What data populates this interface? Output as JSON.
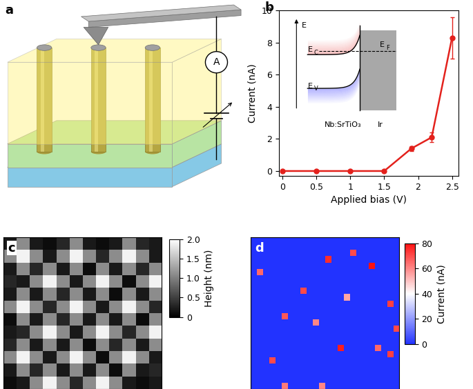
{
  "chart_data": [
    {
      "type": "diagram",
      "title": "a",
      "annotations": [
        "A"
      ]
    },
    {
      "type": "line",
      "title": "b",
      "x": [
        0,
        0.5,
        1,
        1.5,
        1.9,
        2.2,
        2.5
      ],
      "values": [
        0,
        0,
        0,
        0,
        1.4,
        2.1,
        8.3
      ],
      "errors": [
        0,
        0,
        0,
        0,
        0.15,
        0.3,
        1.3
      ],
      "x_label": "Applied bias (V)",
      "y_label": "Current (nA)",
      "xlim": [
        -0.05,
        2.6
      ],
      "xticks": [
        0,
        0.5,
        1,
        1.5,
        2,
        2.5
      ],
      "ylim": [
        -0.3,
        10
      ],
      "yticks": [
        0,
        2,
        4,
        6,
        8,
        10
      ],
      "color": "#e3211c",
      "marker": "o",
      "line_style": "solid",
      "grid": false,
      "inset": {
        "type": "diagram",
        "annotations": [
          {
            "text": "E"
          },
          {
            "text": "E",
            "subscript": "C"
          },
          {
            "text": "E",
            "subscript": "F"
          },
          {
            "text": "E",
            "subscript": "V"
          },
          {
            "text": "Nb:SrTiO₃"
          },
          {
            "text": "Ir"
          }
        ]
      }
    },
    {
      "type": "heatmap",
      "title": "c",
      "tick_labels": false,
      "cells": [
        [
          0.2,
          1.1,
          0.2,
          0.1,
          0.3,
          1.1,
          0.2,
          0.1,
          0.2,
          1.1,
          0.3,
          0.2
        ],
        [
          1.1,
          1.9,
          1.1,
          0.2,
          1.1,
          1.9,
          1.1,
          0.3,
          1.1,
          1.9,
          1.1,
          0.2
        ],
        [
          0.2,
          1.1,
          0.3,
          1.1,
          0.2,
          1.1,
          0.1,
          1.1,
          0.2,
          1.1,
          0.3,
          1.1
        ],
        [
          0.3,
          0.2,
          1.1,
          1.9,
          1.1,
          0.2,
          1.1,
          1.9,
          1.1,
          0.1,
          1.1,
          1.9
        ],
        [
          0.2,
          1.1,
          0.2,
          1.1,
          0.3,
          1.1,
          0.2,
          1.1,
          0.1,
          1.1,
          0.2,
          1.1
        ],
        [
          1.1,
          1.9,
          1.1,
          0.3,
          1.1,
          1.9,
          1.1,
          0.2,
          1.1,
          1.9,
          1.1,
          0.3
        ],
        [
          0.1,
          1.1,
          0.2,
          1.1,
          0.3,
          1.1,
          0.2,
          1.1,
          0.2,
          1.1,
          0.1,
          1.1
        ],
        [
          0.2,
          0.3,
          1.1,
          1.9,
          1.1,
          0.2,
          1.1,
          1.9,
          1.1,
          0.3,
          1.1,
          1.9
        ],
        [
          0.3,
          1.1,
          0.2,
          1.1,
          0.2,
          1.1,
          0.1,
          1.1,
          0.3,
          1.1,
          0.2,
          1.1
        ],
        [
          1.1,
          1.9,
          1.1,
          0.2,
          1.1,
          1.9,
          1.1,
          0.1,
          1.1,
          1.9,
          1.1,
          0.2
        ],
        [
          0.2,
          1.1,
          0.3,
          1.1,
          0.2,
          1.1,
          0.2,
          1.1,
          0.1,
          1.1,
          0.2,
          0.3
        ],
        [
          0.1,
          0.2,
          1.1,
          1.9,
          1.1,
          0.3,
          1.1,
          1.9,
          1.1,
          0.2,
          0.1,
          0.2
        ]
      ],
      "colorbar": {
        "label": "Height (nm)",
        "range": [
          0,
          2
        ],
        "ticks": [
          0,
          0.5,
          {
            "value": 1,
            "label": "1.0"
          },
          1.5,
          {
            "value": 2,
            "label": "2.0"
          }
        ]
      }
    },
    {
      "type": "heatmap",
      "title": "d",
      "tick_labels": false,
      "shape": [
        24,
        24
      ],
      "background": 0,
      "hot_cells": [
        [
          3,
          12,
          75
        ],
        [
          2,
          16,
          70
        ],
        [
          4,
          19,
          80
        ],
        [
          5,
          1,
          65
        ],
        [
          8,
          8,
          70
        ],
        [
          9,
          15,
          55
        ],
        [
          10,
          22,
          72
        ],
        [
          12,
          5,
          68
        ],
        [
          13,
          10,
          60
        ],
        [
          14,
          23,
          70
        ],
        [
          17,
          14,
          78
        ],
        [
          17,
          20,
          65
        ],
        [
          19,
          3,
          70
        ],
        [
          18,
          22,
          72
        ],
        [
          23,
          11,
          60
        ],
        [
          23,
          5,
          62
        ]
      ],
      "colorbar": {
        "label": "Current (nA)",
        "range": [
          0,
          80
        ],
        "ticks": [
          0,
          20,
          40,
          60,
          80
        ]
      }
    }
  ]
}
